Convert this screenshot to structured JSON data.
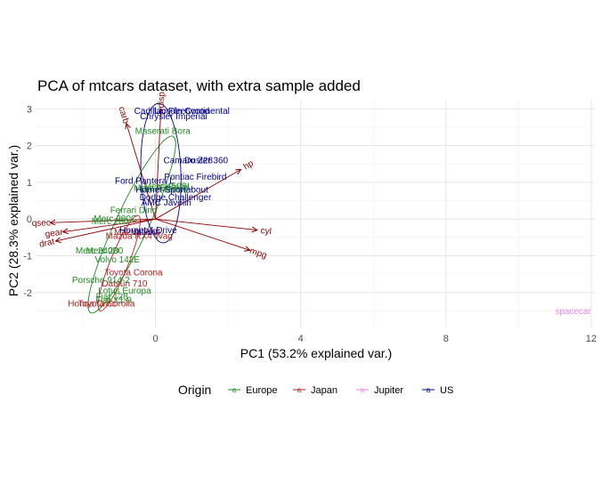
{
  "chart_data": {
    "type": "scatter",
    "title": "PCA of mtcars dataset, with extra sample added",
    "xlabel": "PC1 (53.2% explained var.)",
    "ylabel": "PC2 (28.3% explained var.)",
    "xlim": [
      -3.3,
      12.1
    ],
    "ylim": [
      -2.95,
      3.25
    ],
    "x_ticks": [
      0,
      4,
      8,
      12
    ],
    "y_ticks": [
      -2,
      -1,
      0,
      1,
      2,
      3
    ],
    "grid": true,
    "legend_position": "bottom",
    "legend": {
      "title": "Origin",
      "entries": [
        {
          "name": "Europe",
          "color": "#228b22"
        },
        {
          "name": "Japan",
          "color": "#b22222"
        },
        {
          "name": "Jupiter",
          "color": "#ee82ee"
        },
        {
          "name": "US",
          "color": "#00008b"
        }
      ]
    },
    "points": [
      {
        "label": "Mazda RX4",
        "x": -0.5,
        "y": -0.35,
        "group": "Japan"
      },
      {
        "label": "Mazda RX4 Wag",
        "x": -0.45,
        "y": -0.45,
        "group": "Japan"
      },
      {
        "label": "Datsun 710",
        "x": -0.85,
        "y": -1.75,
        "group": "Japan"
      },
      {
        "label": "Toyota Corona",
        "x": -0.6,
        "y": -1.45,
        "group": "Japan"
      },
      {
        "label": "Toyota Corolla",
        "x": -1.35,
        "y": -2.3,
        "group": "Japan"
      },
      {
        "label": "Honda Civic",
        "x": -1.75,
        "y": -2.3,
        "group": "Japan"
      },
      {
        "label": "Fiat 128",
        "x": -1.2,
        "y": -2.1,
        "group": "Europe"
      },
      {
        "label": "Fiat X1-9",
        "x": -1.15,
        "y": -2.2,
        "group": "Europe"
      },
      {
        "label": "Lotus Europa",
        "x": -0.85,
        "y": -1.95,
        "group": "Europe"
      },
      {
        "label": "Porsche 914-2",
        "x": -1.5,
        "y": -1.65,
        "group": "Europe"
      },
      {
        "label": "Volvo 142E",
        "x": -1.05,
        "y": -1.1,
        "group": "Europe"
      },
      {
        "label": "Merc 240D",
        "x": -1.6,
        "y": -0.85,
        "group": "Europe"
      },
      {
        "label": "Merc 230",
        "x": -1.4,
        "y": -0.85,
        "group": "Europe"
      },
      {
        "label": "Merc 280",
        "x": -1.25,
        "y": -0.05,
        "group": "Europe"
      },
      {
        "label": "Merc 280C",
        "x": -1.1,
        "y": 0.02,
        "group": "Europe"
      },
      {
        "label": "Ferrari Dino",
        "x": -0.6,
        "y": 0.25,
        "group": "Europe"
      },
      {
        "label": "Maserati Bora",
        "x": 0.2,
        "y": 2.4,
        "group": "Europe"
      },
      {
        "label": "Merc 450SE",
        "x": 0.25,
        "y": 0.8,
        "group": "Europe"
      },
      {
        "label": "Merc 450SL",
        "x": 0.35,
        "y": 0.9,
        "group": "Europe"
      },
      {
        "label": "Merc 450SLC",
        "x": 0.15,
        "y": 0.85,
        "group": "Europe"
      },
      {
        "label": "Hornet 4 Drive",
        "x": -0.2,
        "y": -0.3,
        "group": "US"
      },
      {
        "label": "Valiant",
        "x": -0.3,
        "y": -0.35,
        "group": "US"
      },
      {
        "label": "Ford Pantera L",
        "x": -0.3,
        "y": 1.05,
        "group": "US"
      },
      {
        "label": "Pontiac Firebird",
        "x": 1.1,
        "y": 1.15,
        "group": "US"
      },
      {
        "label": "Hornet Sportabout",
        "x": 0.45,
        "y": 0.8,
        "group": "US"
      },
      {
        "label": "Dodge Challenger",
        "x": 0.55,
        "y": 0.6,
        "group": "US"
      },
      {
        "label": "AMC Javelin",
        "x": 0.3,
        "y": 0.45,
        "group": "US"
      },
      {
        "label": "Camaro Z28",
        "x": 0.9,
        "y": 1.6,
        "group": "US"
      },
      {
        "label": "Duster 360",
        "x": 1.4,
        "y": 1.6,
        "group": "US"
      },
      {
        "label": "Lincoln Continental",
        "x": 1.0,
        "y": 2.95,
        "group": "US"
      },
      {
        "label": "Cadillac Fleetwood",
        "x": 0.45,
        "y": 2.95,
        "group": "US"
      },
      {
        "label": "Chrysler Imperial",
        "x": 0.5,
        "y": 2.8,
        "group": "US"
      },
      {
        "label": "spacecar",
        "x": 11.5,
        "y": -2.5,
        "group": "Jupiter"
      }
    ],
    "loadings": [
      {
        "label": "carb",
        "x": -0.8,
        "y": 2.6
      },
      {
        "label": "disp",
        "x": 0.15,
        "y": 3.0
      },
      {
        "label": "hp",
        "x": 2.35,
        "y": 1.35
      },
      {
        "label": "cyl",
        "x": 2.8,
        "y": -0.3
      },
      {
        "label": "mpg",
        "x": 2.6,
        "y": -0.85
      },
      {
        "label": "qsec",
        "x": -2.9,
        "y": -0.1
      },
      {
        "label": "gear",
        "x": -2.55,
        "y": -0.35
      },
      {
        "label": "drat",
        "x": -2.75,
        "y": -0.6
      }
    ],
    "ellipses": [
      {
        "group": "Europe",
        "cx": -0.65,
        "cy": -0.15,
        "rx": 2.65,
        "ry": 0.45,
        "angle": 65
      },
      {
        "group": "Japan",
        "cx": -1.0,
        "cy": -1.2,
        "rx": 1.4,
        "ry": 0.25,
        "angle": 68
      },
      {
        "group": "US",
        "cx": 0.15,
        "cy": 1.25,
        "rx": 1.9,
        "ry": 0.55,
        "angle": 92
      }
    ]
  }
}
